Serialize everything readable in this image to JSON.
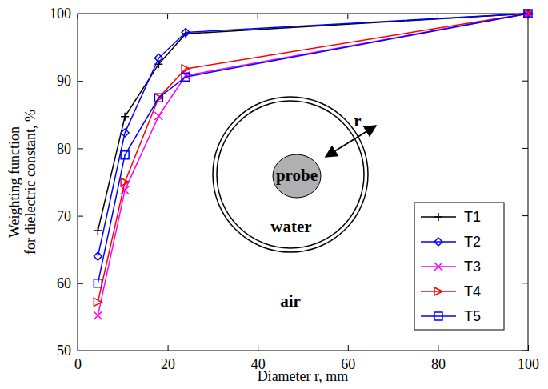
{
  "chart_data": {
    "type": "line",
    "x_label": "Diameter r, mm",
    "y_label": "Weighting function\nfor dielectric constant, %",
    "x": [
      4.5,
      10.5,
      18,
      24,
      100
    ],
    "xlim": [
      0,
      100
    ],
    "xticks": [
      0,
      20,
      40,
      60,
      80,
      100
    ],
    "ylim": [
      50,
      100
    ],
    "yticks": [
      50,
      60,
      70,
      80,
      90,
      100
    ],
    "grid": false,
    "legend": "lower right",
    "series": [
      {
        "name": "T1",
        "color": "#000000",
        "marker": "plus",
        "values": [
          67.8,
          84.7,
          92.5,
          97.0,
          100
        ]
      },
      {
        "name": "T2",
        "color": "#0000ff",
        "marker": "diamond",
        "values": [
          64.0,
          82.3,
          93.4,
          97.2,
          100
        ]
      },
      {
        "name": "T3",
        "color": "#ff00ff",
        "marker": "x",
        "values": [
          55.2,
          73.8,
          84.8,
          90.8,
          100
        ]
      },
      {
        "name": "T4",
        "color": "#ff0000",
        "marker": "triangle-right",
        "values": [
          57.2,
          75.0,
          87.5,
          91.8,
          100
        ]
      },
      {
        "name": "T5",
        "color": "#0000ff",
        "marker": "square",
        "values": [
          60.0,
          79.0,
          87.5,
          90.6,
          100
        ]
      }
    ],
    "annotations": [
      {
        "text": "probe"
      },
      {
        "text": "water"
      },
      {
        "text": "air"
      },
      {
        "text": "r"
      }
    ]
  }
}
